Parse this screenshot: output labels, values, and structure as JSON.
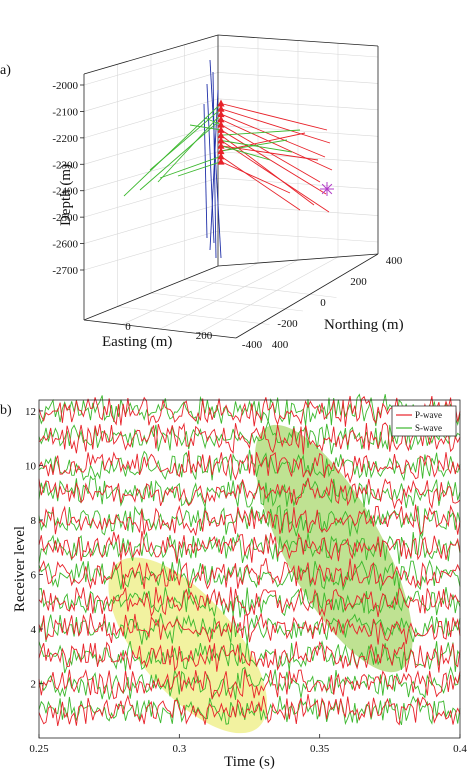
{
  "figure": {
    "panel_a_label": "a)",
    "panel_b_label": "b)"
  },
  "chart_data": [
    {
      "panel": "a)",
      "type": "scatter",
      "title": "",
      "xlabel": "Easting (m)",
      "ylabel": "Northing (m)",
      "zlabel": "Depth (m)",
      "grid": true,
      "depth_ticks": [
        -2000,
        -2100,
        -2200,
        -2300,
        -2400,
        -2500,
        -2600,
        -2700
      ],
      "easting_ticks": [
        0,
        200,
        400
      ],
      "northing_ticks": [
        -400,
        -200,
        0,
        200,
        400
      ],
      "colors": {
        "receivers": "#e8222a",
        "p_rays": "#e8222a",
        "s_rays": "#3cb82e",
        "wells": "#1f2fa8",
        "source": "#b23cc8"
      },
      "receiver_depths": [
        -2070,
        -2090,
        -2110,
        -2130,
        -2150,
        -2170,
        -2190,
        -2210,
        -2230,
        -2250,
        -2270,
        -2290
      ],
      "source": {
        "marker": "asterisk",
        "color": "#b23cc8"
      },
      "series": [
        {
          "marker": "triangle",
          "color": "#e8222a"
        },
        {
          "marker": "line",
          "color": "#e8222a"
        },
        {
          "marker": "line",
          "color": "#3cb82e"
        },
        {
          "marker": "line",
          "color": "#1f2fa8"
        }
      ]
    },
    {
      "panel": "b)",
      "type": "line",
      "title": "",
      "xlabel": "Time (s)",
      "ylabel": "Receiver level",
      "xlim": [
        0.25,
        0.4
      ],
      "ylim": [
        0,
        12.4
      ],
      "x_ticks": [
        0.25,
        0.3,
        0.35,
        0.4
      ],
      "x_tick_labels": [
        "0.25",
        "0.3",
        "0.35",
        "0.4"
      ],
      "y_ticks": [
        2,
        4,
        6,
        8,
        10,
        12
      ],
      "legend_position": "top-right",
      "series": [
        {
          "name": "P-wave",
          "color": "#e8222a",
          "receiver_levels": [
            1,
            2,
            3,
            4,
            5,
            6,
            7,
            8,
            9,
            10,
            11,
            12
          ]
        },
        {
          "name": "S-wave",
          "color": "#3cb82e",
          "receiver_levels": [
            1,
            2,
            3,
            4,
            5,
            6,
            7,
            8,
            9,
            10,
            11,
            12
          ]
        }
      ],
      "p_arrival_window": {
        "t_range": [
          0.283,
          0.323
        ],
        "levels": [
          1,
          5.8
        ],
        "color": "#eeee80"
      },
      "s_arrival_window": {
        "t_range": [
          0.335,
          0.375
        ],
        "levels": [
          3.2,
          10.7
        ],
        "color": "#a9d86e"
      }
    }
  ]
}
